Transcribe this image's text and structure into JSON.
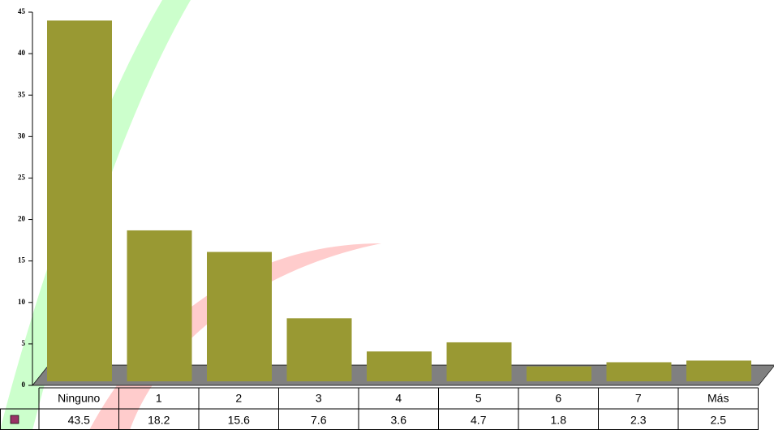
{
  "chart_data": {
    "type": "bar",
    "categories": [
      "Ninguno",
      "1",
      "2",
      "3",
      "4",
      "5",
      "6",
      "7",
      "Más"
    ],
    "series": [
      {
        "color": "#999933",
        "values": [
          43.5,
          18.2,
          15.6,
          7.6,
          3.6,
          4.7,
          1.8,
          2.3,
          2.5
        ]
      }
    ],
    "legend_color": "#993366",
    "ylim": [
      0,
      45
    ],
    "yticks": [
      0,
      5,
      10,
      15,
      20,
      25,
      30,
      35,
      40,
      45
    ]
  }
}
